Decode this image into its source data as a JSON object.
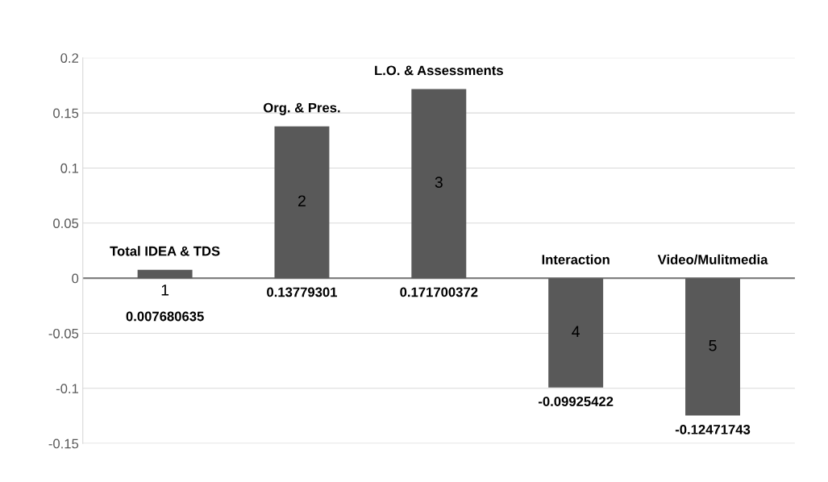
{
  "chart_data": {
    "type": "bar",
    "categories": [
      "1",
      "2",
      "3",
      "4",
      "5"
    ],
    "values": [
      0.007680635,
      0.13779301,
      0.171700372,
      -0.09925422,
      -0.12471743
    ],
    "color": "#595959",
    "data_labels": true,
    "ylim": [
      -0.15,
      0.2
    ],
    "yticks": [
      -0.15,
      -0.1,
      -0.05,
      0,
      0.05,
      0.1,
      0.15,
      0.2
    ],
    "grid": "y",
    "legend": false,
    "annotations": [
      {
        "text": "Total IDEA & TDS",
        "x": "1",
        "y": 0.007680635
      },
      {
        "text": "Org. & Pres.",
        "x": "2",
        "y": 0.13779301
      },
      {
        "text": "L.O. & Assessments",
        "x": "3",
        "y": 0.171700372
      },
      {
        "text": "Interaction",
        "x": "4",
        "y": 0
      },
      {
        "text": "Video/Mulitmedia",
        "x": "5",
        "y": 0
      }
    ]
  }
}
